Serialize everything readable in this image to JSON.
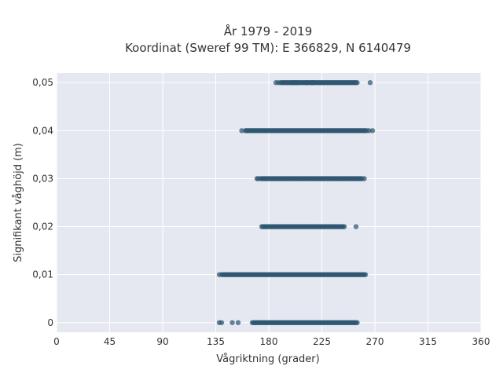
{
  "chart_data": {
    "type": "scatter",
    "title_line1": "År 1979 - 2019",
    "title_line2": "Koordinat (Sweref 99 TM): E 366829, N 6140479",
    "xlabel": "Vågriktning (grader)",
    "ylabel": "Signifikant våghöjd (m)",
    "xlim": [
      0,
      360
    ],
    "ylim": [
      -0.002,
      0.052
    ],
    "x_ticks": [
      0,
      45,
      90,
      135,
      180,
      225,
      270,
      315,
      360
    ],
    "x_tick_labels": [
      "0",
      "45",
      "90",
      "135",
      "180",
      "225",
      "270",
      "315",
      "360"
    ],
    "y_ticks": [
      0,
      0.01,
      0.02,
      0.03,
      0.04,
      0.05
    ],
    "y_tick_labels": [
      "0",
      "0,01",
      "0,02",
      "0,03",
      "0,04",
      "0,05"
    ],
    "grid": true,
    "plot_bgcolor": "#e5e8f0",
    "marker_color": "#2e5670",
    "bands": [
      {
        "y": 0.05,
        "dense_from": 190,
        "dense_to": 255,
        "outliers": [
          186,
          188,
          200,
          203,
          212,
          217,
          266
        ]
      },
      {
        "y": 0.04,
        "dense_from": 160,
        "dense_to": 263,
        "outliers": [
          157,
          265,
          268
        ]
      },
      {
        "y": 0.03,
        "dense_from": 173,
        "dense_to": 258,
        "outliers": [
          170,
          171,
          259,
          261
        ]
      },
      {
        "y": 0.02,
        "dense_from": 176,
        "dense_to": 244,
        "outliers": [
          174,
          175,
          254
        ]
      },
      {
        "y": 0.01,
        "dense_from": 140,
        "dense_to": 262,
        "outliers": [
          138
        ]
      },
      {
        "y": 0.0,
        "dense_from": 166,
        "dense_to": 255,
        "outliers": [
          138,
          140,
          149,
          154
        ]
      }
    ]
  }
}
